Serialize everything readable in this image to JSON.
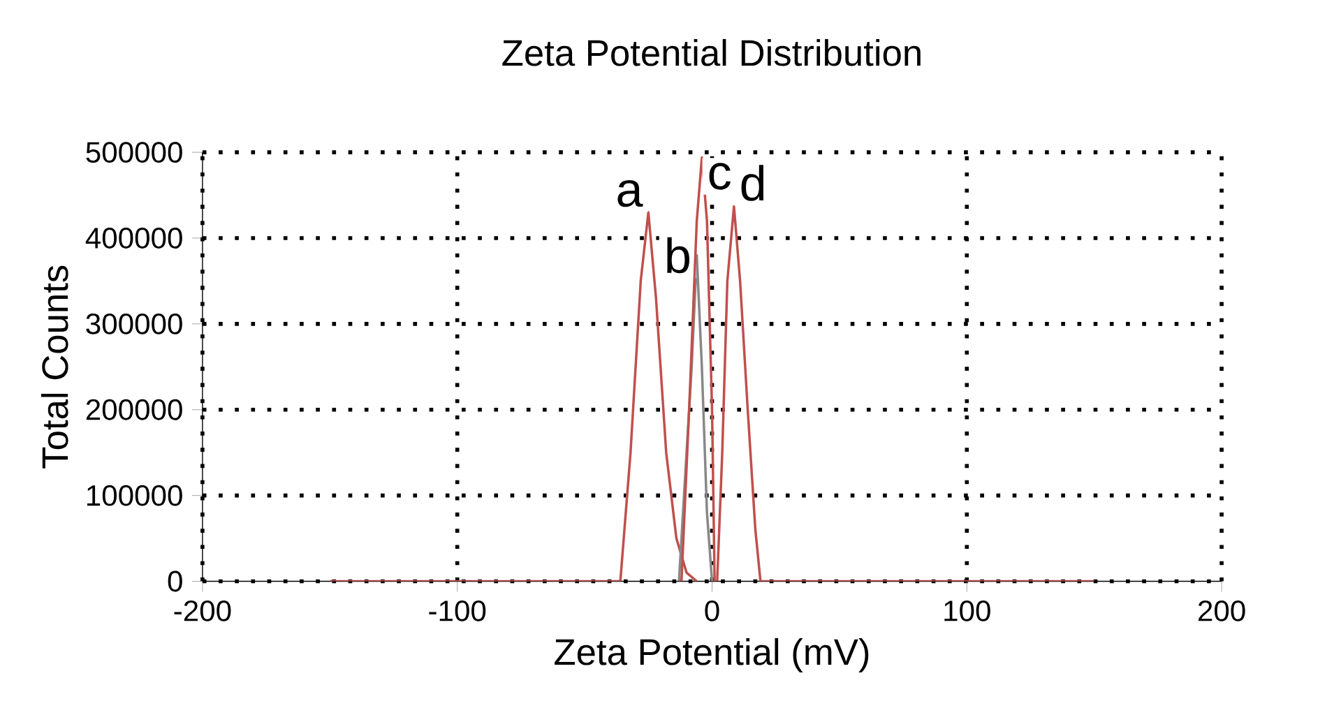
{
  "chart_data": {
    "type": "line",
    "title": "Zeta Potential Distribution",
    "xlabel": "Zeta Potential (mV)",
    "ylabel": "Total Counts",
    "xlim": [
      -200,
      200
    ],
    "xticks": [
      -200,
      -100,
      0,
      100,
      200
    ],
    "ylim": [
      0,
      500000
    ],
    "yticks": [
      0,
      100000,
      200000,
      300000,
      400000,
      500000
    ],
    "grid": true,
    "line_style": "solid",
    "series": [
      {
        "name": "a",
        "color": "#c0504d",
        "x": [
          -150,
          -36,
          -32,
          -28,
          -25,
          -22,
          -18,
          -14,
          -10,
          -6
        ],
        "values": [
          0,
          0,
          150000,
          350000,
          430000,
          330000,
          150000,
          50000,
          10000,
          0
        ]
      },
      {
        "name": "b",
        "color": "#888888",
        "x": [
          -13,
          -11,
          -8,
          -6,
          -4,
          -2,
          0
        ],
        "values": [
          0,
          100000,
          250000,
          380000,
          250000,
          80000,
          0
        ]
      },
      {
        "name": "c",
        "color": "#c0504d",
        "x": [
          -12,
          -9,
          -6,
          -4,
          -2,
          0,
          1
        ],
        "values": [
          0,
          200000,
          420000,
          494000,
          420000,
          200000,
          0
        ]
      },
      {
        "name": "d",
        "color": "#c0504d",
        "x": [
          2,
          4,
          6,
          8.6,
          11,
          14,
          17,
          19,
          150
        ],
        "values": [
          0,
          150000,
          350000,
          437000,
          350000,
          200000,
          60000,
          0,
          0
        ]
      }
    ]
  }
}
